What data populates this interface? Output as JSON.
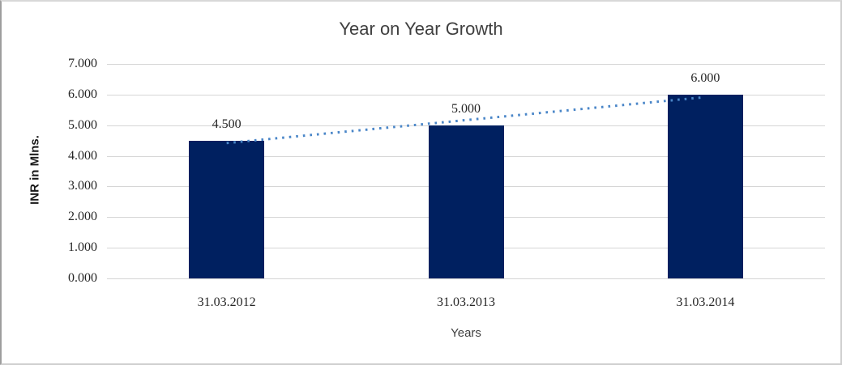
{
  "chart_data": {
    "type": "bar",
    "title": "Year on Year Growth",
    "xlabel": "Years",
    "ylabel": "INR in Mlns.",
    "categories": [
      "31.03.2012",
      "31.03.2013",
      "31.03.2014"
    ],
    "values": [
      4.5,
      5.0,
      6.0
    ],
    "value_labels": [
      "4.500",
      "5.000",
      "6.000"
    ],
    "ylim": [
      0,
      7
    ],
    "ytick_step": 1,
    "ytick_labels": [
      "0.000",
      "1.000",
      "2.000",
      "3.000",
      "4.000",
      "5.000",
      "6.000",
      "7.000"
    ],
    "grid": "horizontal",
    "legend": "none",
    "trendline": {
      "type": "linear",
      "style": "dotted",
      "start_value": 4.417,
      "end_value": 5.917
    },
    "colors": {
      "bar": "#002060",
      "trendline": "#4A86C8",
      "gridline": "#D6D6D6",
      "title_text": "#3F3F3F",
      "axis_title_text": "#1A1A1A",
      "tick_text": "#262626",
      "x_axis_title_text": "#3F3F3F"
    }
  }
}
